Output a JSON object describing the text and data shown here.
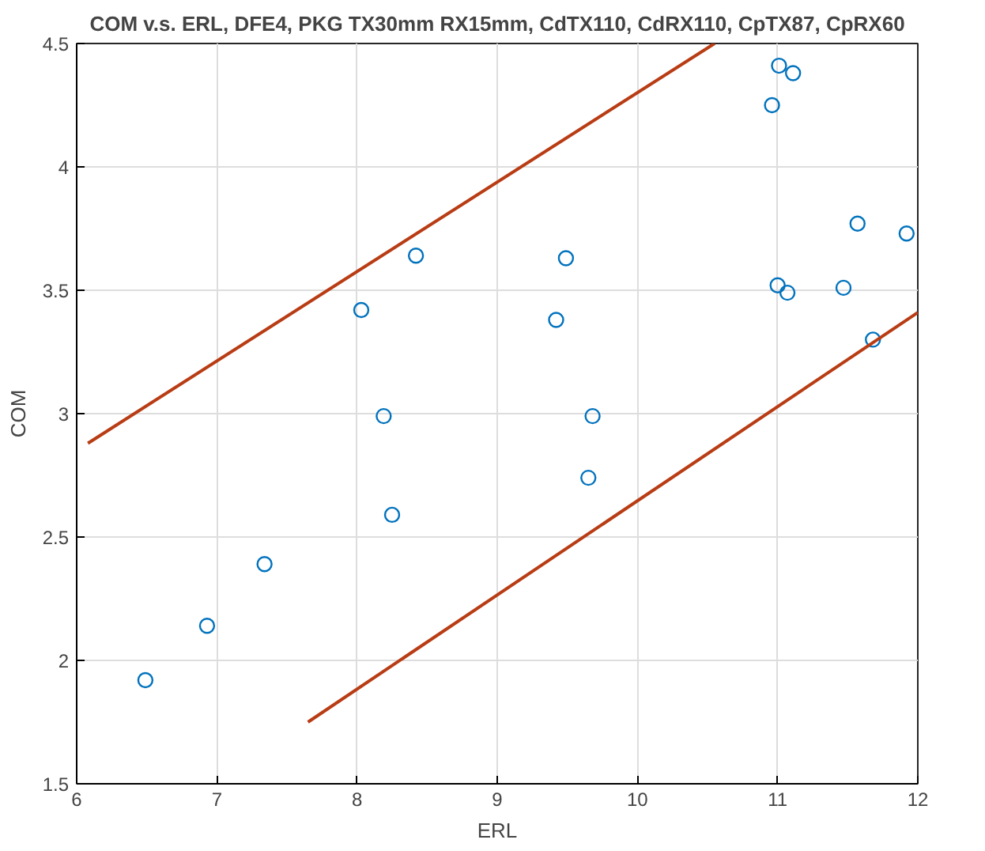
{
  "chart_data": {
    "type": "scatter",
    "title": "COM v.s. ERL, DFE4, PKG TX30mm RX15mm, CdTX110, CdRX110, CpTX87, CpRX60",
    "xlabel": "ERL",
    "ylabel": "COM",
    "xlim": [
      6,
      12
    ],
    "ylim": [
      1.5,
      4.5
    ],
    "xticks": [
      6,
      7,
      8,
      9,
      10,
      11,
      12
    ],
    "yticks": [
      1.5,
      2,
      {
        "value": 2.5,
        "label": "2.5"
      },
      3,
      {
        "value": 3.5,
        "label": "3.5"
      },
      4,
      {
        "value": 4.5,
        "label": "4.5"
      }
    ],
    "grid": true,
    "series": [
      {
        "marker": "circle",
        "color": "#0072bd",
        "x": [
          8.42,
          8.03,
          8.19,
          11.01,
          11.11,
          10.96,
          9.49,
          11.57,
          11.92,
          11.0,
          11.07,
          11.47,
          9.42,
          11.68,
          9.68,
          8.25,
          7.34,
          6.93,
          6.49,
          9.65
        ],
        "values": [
          3.64,
          3.42,
          2.99,
          4.41,
          4.38,
          4.25,
          3.63,
          3.77,
          3.73,
          3.52,
          3.49,
          3.51,
          3.38,
          3.3,
          2.99,
          2.59,
          2.39,
          2.14,
          1.92,
          2.74
        ]
      },
      {
        "type": "line",
        "color": "#b83c14",
        "x": [
          6.08,
          10.55
        ],
        "values": [
          2.88,
          4.5
        ]
      },
      {
        "type": "line",
        "color": "#b83c14",
        "x": [
          7.65,
          12.0
        ],
        "values": [
          1.75,
          3.41
        ]
      }
    ]
  }
}
